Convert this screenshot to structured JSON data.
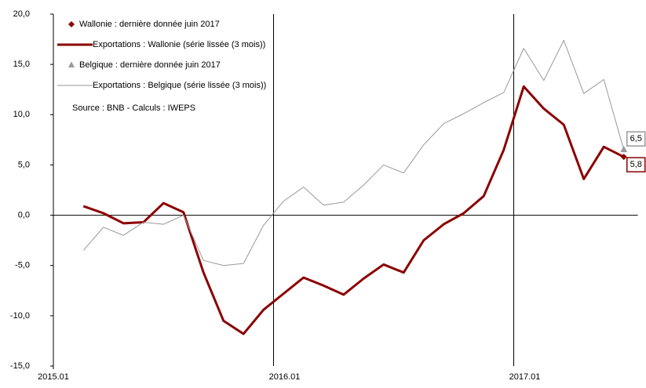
{
  "chart_data": {
    "type": "line",
    "x": [
      2.5,
      3.5,
      4.5,
      5.5,
      6.5,
      7.5,
      8.5,
      9.5,
      10.5,
      11.5,
      12.5,
      13.5,
      14.5,
      15.5,
      16.5,
      17.5,
      18.5,
      19.5,
      20.5,
      21.5,
      22.5,
      23.5,
      24.5,
      25.5,
      26.5,
      27.5,
      28.5,
      29.5
    ],
    "xlim": [
      1,
      30.2
    ],
    "xticks": [
      {
        "value": 1,
        "label": "2015.01"
      },
      {
        "value": 12,
        "label": "2016.01"
      },
      {
        "value": 24,
        "label": "2017.01"
      }
    ],
    "ylim": [
      -15,
      20
    ],
    "yticks": [
      {
        "value": -15,
        "label": "-15,0"
      },
      {
        "value": -10,
        "label": "-10,0"
      },
      {
        "value": -5,
        "label": "-5,0"
      },
      {
        "value": 0,
        "label": "0,0"
      },
      {
        "value": 5,
        "label": "5,0"
      },
      {
        "value": 10,
        "label": "10,0"
      },
      {
        "value": 15,
        "label": "15,0"
      },
      {
        "value": 20,
        "label": "20,0"
      }
    ],
    "annotation": "Source : BNB - Calculs : IWEPS",
    "series": [
      {
        "name": "Wallonie : dernière donnée juin 2017",
        "kind": "marker",
        "marker": "diamond",
        "color": "#8b0000",
        "x": [
          29.5
        ],
        "values": [
          5.8
        ],
        "value_labels": [
          "5,8"
        ]
      },
      {
        "name": "Exportations : Wallonie (série lissée (3 mois))",
        "kind": "line",
        "width": 3,
        "color": "#8b0000",
        "values": [
          0.9,
          0.2,
          -0.8,
          -0.7,
          1.2,
          0.3,
          -5.7,
          -10.5,
          -11.8,
          -9.4,
          -7.8,
          -6.2,
          -7.0,
          -7.9,
          -6.3,
          -4.9,
          -5.7,
          -2.5,
          -0.9,
          0.2,
          1.9,
          6.5,
          12.8,
          10.6,
          9.0,
          3.6,
          6.8,
          5.8
        ]
      },
      {
        "name": "Belgique : dernière donnée juin 2017",
        "kind": "marker",
        "marker": "triangle",
        "color": "#999999",
        "x": [
          29.5
        ],
        "values": [
          6.5
        ],
        "value_labels": [
          "6,5"
        ]
      },
      {
        "name": "Exportations : Belgique (série lissée (3 mois))",
        "kind": "line",
        "width": 1,
        "color": "#999999",
        "values": [
          -3.5,
          -1.2,
          -2.0,
          -0.7,
          -0.9,
          0.0,
          -4.5,
          -5.0,
          -4.8,
          -1.0,
          1.4,
          2.8,
          1.0,
          1.3,
          3.0,
          5.0,
          4.2,
          7.0,
          9.1,
          10.1,
          11.2,
          12.2,
          16.6,
          13.4,
          17.4,
          12.1,
          13.5,
          6.5
        ]
      }
    ]
  }
}
